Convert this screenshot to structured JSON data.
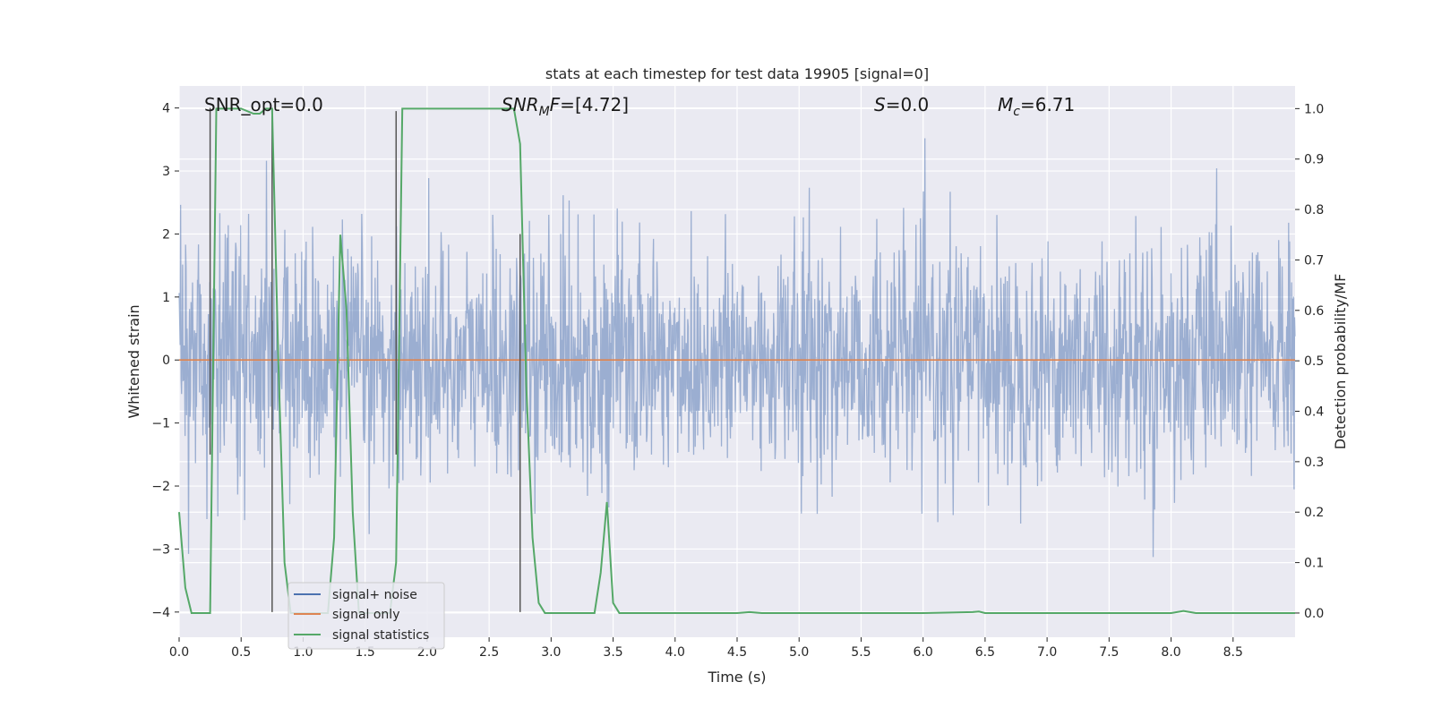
{
  "chart_data": {
    "type": "line",
    "title": "stats at each timestep for test data 19905 [signal=0]",
    "xlabel": "Time (s)",
    "ylabel_left": "Whitened strain",
    "ylabel_right": "Detection probability/MF",
    "xlim": [
      0,
      9.0
    ],
    "ylim_left": [
      -4.4,
      4.35
    ],
    "ylim_right": [
      -0.048,
      1.045
    ],
    "x_ticks": [
      0.0,
      0.5,
      1.0,
      1.5,
      2.0,
      2.5,
      3.0,
      3.5,
      4.0,
      4.5,
      5.0,
      5.5,
      6.0,
      6.5,
      7.0,
      7.5,
      8.0,
      8.5
    ],
    "x_tick_labels": [
      "0.0",
      "0.5",
      "1.0",
      "1.5",
      "2.0",
      "2.5",
      "3.0",
      "3.5",
      "4.0",
      "4.5",
      "5.0",
      "5.5",
      "6.0",
      "6.5",
      "7.0",
      "7.5",
      "8.0",
      "8.5"
    ],
    "y_left_ticks": [
      -4,
      -3,
      -2,
      -1,
      0,
      1,
      2,
      3,
      4
    ],
    "y_left_tick_labels": [
      "−4",
      "−3",
      "−2",
      "−1",
      "0",
      "1",
      "2",
      "3",
      "4"
    ],
    "y_right_ticks": [
      0.0,
      0.1,
      0.2,
      0.3,
      0.4,
      0.5,
      0.6,
      0.7,
      0.8,
      0.9,
      1.0
    ],
    "y_right_tick_labels": [
      "0.0",
      "0.1",
      "0.2",
      "0.3",
      "0.4",
      "0.5",
      "0.6",
      "0.7",
      "0.8",
      "0.9",
      "1.0"
    ],
    "grid": true,
    "legend_position": "bottom-left",
    "annotations": [
      {
        "id": "snr-opt",
        "label": "SNR_opt=0.0",
        "x": 0.2,
        "y": 4.0
      },
      {
        "id": "snr-mf",
        "label": "[4.72]",
        "x": 2.6,
        "y": 4.0
      },
      {
        "id": "s-value",
        "label": "=0.0",
        "x": 5.6,
        "y": 4.0
      },
      {
        "id": "mc-value",
        "label": "=6.71",
        "x": 6.6,
        "y": 4.0
      }
    ],
    "vertical_markers": [
      {
        "x": 0.25,
        "y_from": -1.5,
        "y_to": 4.0
      },
      {
        "x": 0.75,
        "y_from": -4.0,
        "y_to": 4.0
      },
      {
        "x": 1.75,
        "y_from": -1.5,
        "y_to": 3.95
      },
      {
        "x": 2.75,
        "y_from": -4.0,
        "y_to": 2.0
      }
    ],
    "series": [
      {
        "name": "signal+ noise",
        "color": "#4c72b0",
        "axis": "left",
        "kind": "noise",
        "duration": 9.0,
        "samples": 2250,
        "std": 0.92
      },
      {
        "name": "signal only",
        "color": "#dd8452",
        "axis": "left",
        "x": [
          0,
          9.0
        ],
        "y": [
          0,
          0
        ]
      },
      {
        "name": "signal statistics",
        "color": "#55a868",
        "axis": "right",
        "x": [
          0.0,
          0.05,
          0.1,
          0.15,
          0.2,
          0.25,
          0.3,
          0.4,
          0.5,
          0.6,
          0.65,
          0.7,
          0.75,
          0.8,
          0.85,
          0.9,
          0.95,
          1.0,
          1.1,
          1.2,
          1.25,
          1.3,
          1.35,
          1.4,
          1.45,
          1.5,
          1.55,
          1.6,
          1.65,
          1.7,
          1.75,
          1.8,
          1.9,
          2.0,
          2.2,
          2.4,
          2.6,
          2.7,
          2.75,
          2.8,
          2.85,
          2.9,
          2.95,
          3.0,
          3.1,
          3.2,
          3.3,
          3.35,
          3.4,
          3.45,
          3.5,
          3.55,
          3.6,
          4.0,
          4.5,
          4.6,
          4.7,
          5.0,
          5.5,
          6.0,
          6.4,
          6.45,
          6.5,
          7.0,
          7.5,
          8.0,
          8.1,
          8.2,
          8.5,
          9.0
        ],
        "y": [
          0.2,
          0.05,
          0.0,
          0.0,
          0.0,
          0.0,
          1.0,
          1.0,
          1.0,
          0.99,
          0.99,
          1.0,
          1.0,
          0.5,
          0.1,
          0.0,
          0.0,
          0.0,
          0.0,
          0.0,
          0.15,
          0.75,
          0.6,
          0.2,
          0.0,
          0.0,
          0.0,
          0.0,
          0.0,
          0.0,
          0.1,
          1.0,
          1.0,
          1.0,
          1.0,
          1.0,
          1.0,
          1.0,
          0.93,
          0.45,
          0.15,
          0.02,
          0.0,
          0.0,
          0.0,
          0.0,
          0.0,
          0.0,
          0.08,
          0.22,
          0.02,
          0.0,
          0.0,
          0.0,
          0.0,
          0.002,
          0.0,
          0.0,
          0.0,
          0.0,
          0.002,
          0.003,
          0.0,
          0.0,
          0.0,
          0.0,
          0.004,
          0.0,
          0.0,
          0.0
        ]
      }
    ]
  }
}
